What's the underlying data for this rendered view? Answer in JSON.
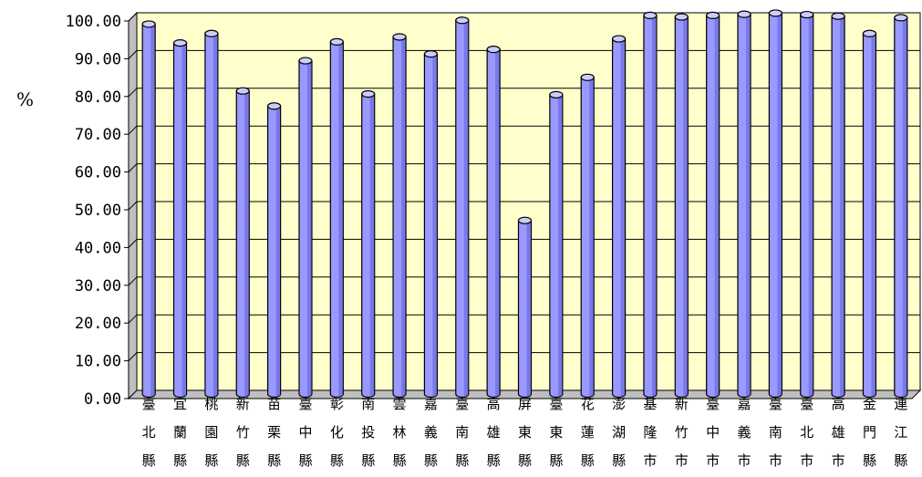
{
  "chart_data": {
    "type": "bar",
    "ylabel": "%",
    "ylim": [
      0,
      100
    ],
    "y_ticks": [
      "0.00",
      "10.00",
      "20.00",
      "30.00",
      "40.00",
      "50.00",
      "60.00",
      "70.00",
      "80.00",
      "90.00",
      "100.00"
    ],
    "grid": true,
    "legend": "none",
    "categories": [
      "臺北縣",
      "宜蘭縣",
      "桃園縣",
      "新竹縣",
      "苗栗縣",
      "臺中縣",
      "彰化縣",
      "南投縣",
      "雲林縣",
      "嘉義縣",
      "臺南縣",
      "高雄縣",
      "屏東縣",
      "臺東縣",
      "花蓮縣",
      "澎湖縣",
      "基隆市",
      "新竹市",
      "臺中市",
      "嘉義市",
      "臺南市",
      "臺北市",
      "高雄市",
      "金門縣",
      "連江縣"
    ],
    "values": [
      97.0,
      92.0,
      94.5,
      79.3,
      75.3,
      87.3,
      92.3,
      78.5,
      93.6,
      89.1,
      98.0,
      90.3,
      45.0,
      78.3,
      82.9,
      93.1,
      99.3,
      98.9,
      99.3,
      99.6,
      99.9,
      99.5,
      99.1,
      94.5,
      98.7
    ],
    "colors": {
      "plot_background": "#ffffcc",
      "bar_fill": "#9999ff",
      "bar_shade": "#5c5cd6",
      "bar_top": "#ccccff",
      "grid": "#000000"
    }
  }
}
